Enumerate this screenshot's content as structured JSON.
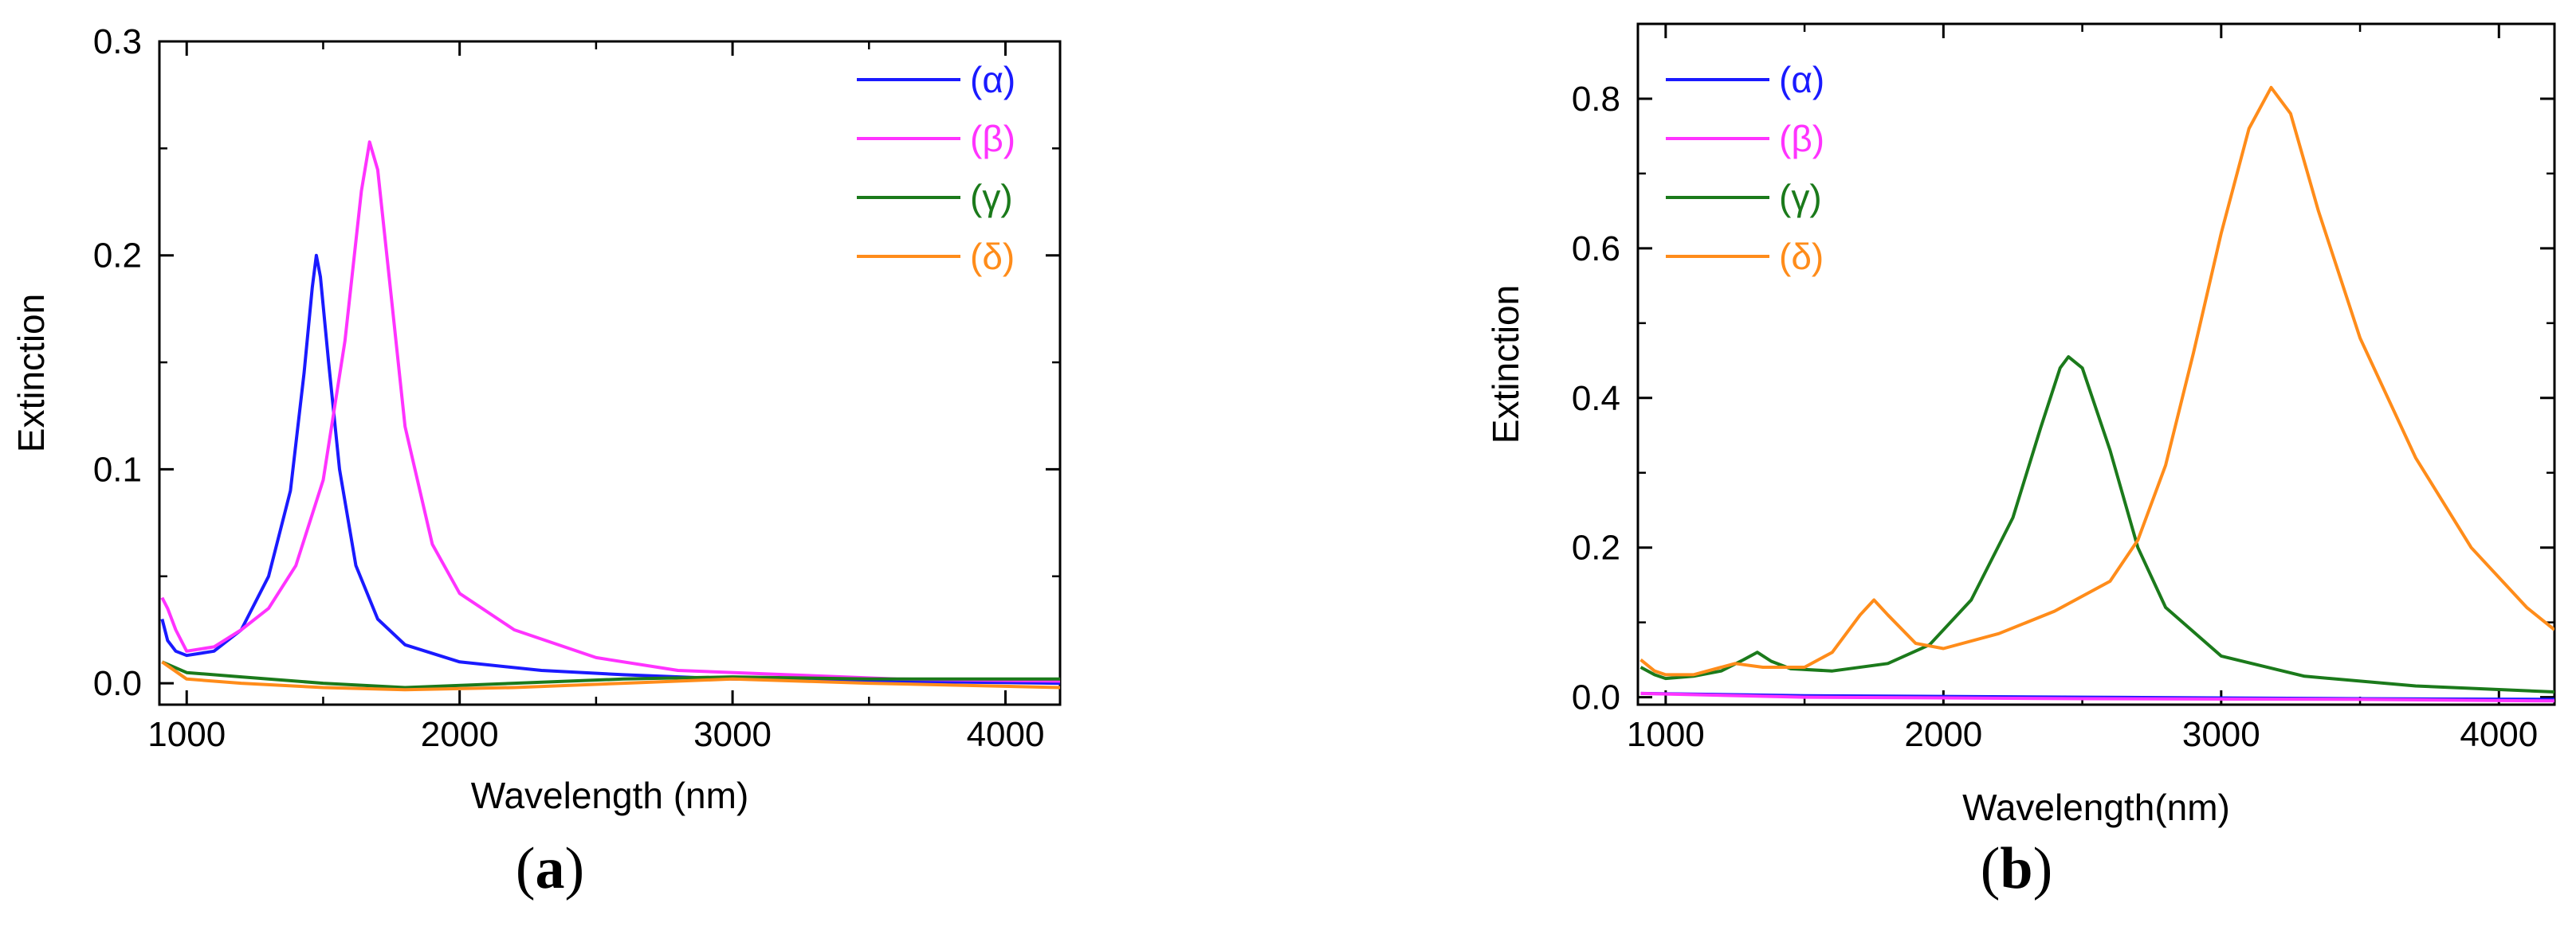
{
  "chart_data": [
    {
      "type": "line",
      "panel_label": "a",
      "xlabel": "Wavelength (nm)",
      "ylabel": "Extinction",
      "xlim": [
        900,
        4200
      ],
      "ylim": [
        -0.01,
        0.3
      ],
      "x_ticks": [
        1000,
        2000,
        3000,
        4000
      ],
      "y_ticks": [
        0.0,
        0.1,
        0.2,
        0.3
      ],
      "y_tick_labels": [
        "0.0",
        "0.1",
        "0.2",
        "0.3"
      ],
      "legend_position": "top-right",
      "series": [
        {
          "name": "(α)",
          "color": "#1a1aff",
          "points": [
            [
              910,
              0.03
            ],
            [
              930,
              0.02
            ],
            [
              960,
              0.015
            ],
            [
              1000,
              0.013
            ],
            [
              1100,
              0.015
            ],
            [
              1200,
              0.025
            ],
            [
              1300,
              0.05
            ],
            [
              1380,
              0.09
            ],
            [
              1430,
              0.145
            ],
            [
              1460,
              0.185
            ],
            [
              1475,
              0.2
            ],
            [
              1490,
              0.19
            ],
            [
              1520,
              0.15
            ],
            [
              1560,
              0.1
            ],
            [
              1620,
              0.055
            ],
            [
              1700,
              0.03
            ],
            [
              1800,
              0.018
            ],
            [
              2000,
              0.01
            ],
            [
              2300,
              0.006
            ],
            [
              2600,
              0.004
            ],
            [
              3000,
              0.002
            ],
            [
              3500,
              0.001
            ],
            [
              4200,
              0.0
            ]
          ]
        },
        {
          "name": "(β)",
          "color": "#ff33ff",
          "points": [
            [
              910,
              0.04
            ],
            [
              930,
              0.035
            ],
            [
              960,
              0.025
            ],
            [
              1000,
              0.015
            ],
            [
              1100,
              0.017
            ],
            [
              1200,
              0.025
            ],
            [
              1300,
              0.035
            ],
            [
              1400,
              0.055
            ],
            [
              1500,
              0.095
            ],
            [
              1580,
              0.16
            ],
            [
              1640,
              0.23
            ],
            [
              1670,
              0.253
            ],
            [
              1700,
              0.24
            ],
            [
              1750,
              0.18
            ],
            [
              1800,
              0.12
            ],
            [
              1900,
              0.065
            ],
            [
              2000,
              0.042
            ],
            [
              2200,
              0.025
            ],
            [
              2500,
              0.012
            ],
            [
              2800,
              0.006
            ],
            [
              3200,
              0.004
            ],
            [
              3600,
              0.002
            ],
            [
              4200,
              0.001
            ]
          ]
        },
        {
          "name": "(γ)",
          "color": "#1b7a1b",
          "points": [
            [
              910,
              0.01
            ],
            [
              1000,
              0.005
            ],
            [
              1200,
              0.003
            ],
            [
              1500,
              0.0
            ],
            [
              1800,
              -0.002
            ],
            [
              2200,
              0.0
            ],
            [
              2600,
              0.002
            ],
            [
              3000,
              0.003
            ],
            [
              3500,
              0.002
            ],
            [
              4200,
              0.002
            ]
          ]
        },
        {
          "name": "(δ)",
          "color": "#ff8c1a",
          "points": [
            [
              910,
              0.01
            ],
            [
              1000,
              0.002
            ],
            [
              1200,
              0.0
            ],
            [
              1500,
              -0.002
            ],
            [
              1800,
              -0.003
            ],
            [
              2200,
              -0.002
            ],
            [
              2600,
              0.0
            ],
            [
              3000,
              0.002
            ],
            [
              3500,
              0.0
            ],
            [
              4200,
              -0.002
            ]
          ]
        }
      ]
    },
    {
      "type": "line",
      "panel_label": "b",
      "xlabel": "Wavelength(nm)",
      "ylabel": "Extinction",
      "xlim": [
        900,
        4200
      ],
      "ylim": [
        -0.01,
        0.9
      ],
      "x_ticks": [
        1000,
        2000,
        3000,
        4000
      ],
      "y_ticks": [
        0.0,
        0.2,
        0.4,
        0.6,
        0.8
      ],
      "y_tick_labels": [
        "0.0",
        "0.2",
        "0.4",
        "0.6",
        "0.8"
      ],
      "legend_position": "top-left",
      "series": [
        {
          "name": "(α)",
          "color": "#1a1aff",
          "points": [
            [
              910,
              0.005
            ],
            [
              1500,
              0.002
            ],
            [
              2500,
              0.0
            ],
            [
              3500,
              -0.002
            ],
            [
              4200,
              -0.003
            ]
          ]
        },
        {
          "name": "(β)",
          "color": "#ff33ff",
          "points": [
            [
              910,
              0.005
            ],
            [
              1500,
              0.0
            ],
            [
              2500,
              -0.002
            ],
            [
              3500,
              -0.003
            ],
            [
              4200,
              -0.005
            ]
          ]
        },
        {
          "name": "(γ)",
          "color": "#1b7a1b",
          "points": [
            [
              910,
              0.04
            ],
            [
              960,
              0.03
            ],
            [
              1000,
              0.025
            ],
            [
              1100,
              0.028
            ],
            [
              1200,
              0.035
            ],
            [
              1280,
              0.05
            ],
            [
              1330,
              0.06
            ],
            [
              1380,
              0.048
            ],
            [
              1450,
              0.038
            ],
            [
              1600,
              0.035
            ],
            [
              1800,
              0.045
            ],
            [
              1950,
              0.07
            ],
            [
              2100,
              0.13
            ],
            [
              2250,
              0.24
            ],
            [
              2350,
              0.36
            ],
            [
              2420,
              0.44
            ],
            [
              2450,
              0.455
            ],
            [
              2500,
              0.44
            ],
            [
              2600,
              0.33
            ],
            [
              2700,
              0.2
            ],
            [
              2800,
              0.12
            ],
            [
              3000,
              0.055
            ],
            [
              3300,
              0.028
            ],
            [
              3700,
              0.015
            ],
            [
              4200,
              0.007
            ]
          ]
        },
        {
          "name": "(δ)",
          "color": "#ff8c1a",
          "points": [
            [
              910,
              0.05
            ],
            [
              960,
              0.035
            ],
            [
              1000,
              0.03
            ],
            [
              1100,
              0.03
            ],
            [
              1250,
              0.045
            ],
            [
              1350,
              0.04
            ],
            [
              1500,
              0.04
            ],
            [
              1600,
              0.06
            ],
            [
              1700,
              0.11
            ],
            [
              1750,
              0.13
            ],
            [
              1800,
              0.11
            ],
            [
              1900,
              0.072
            ],
            [
              2000,
              0.065
            ],
            [
              2200,
              0.085
            ],
            [
              2400,
              0.115
            ],
            [
              2600,
              0.155
            ],
            [
              2700,
              0.21
            ],
            [
              2800,
              0.31
            ],
            [
              2900,
              0.46
            ],
            [
              3000,
              0.62
            ],
            [
              3100,
              0.76
            ],
            [
              3180,
              0.815
            ],
            [
              3250,
              0.78
            ],
            [
              3350,
              0.65
            ],
            [
              3500,
              0.48
            ],
            [
              3700,
              0.32
            ],
            [
              3900,
              0.2
            ],
            [
              4100,
              0.12
            ],
            [
              4200,
              0.09
            ]
          ]
        }
      ]
    }
  ]
}
